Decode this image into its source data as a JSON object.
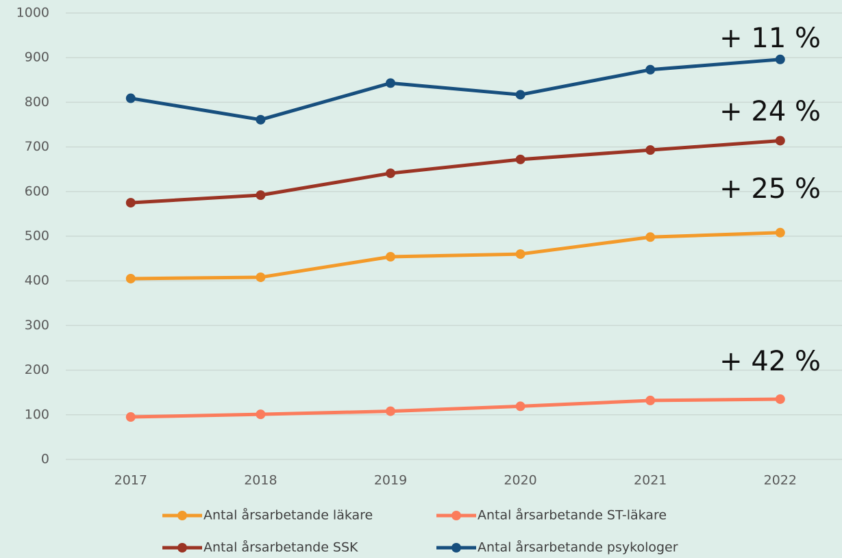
{
  "chart_data": {
    "type": "line",
    "categories": [
      "2017",
      "2018",
      "2019",
      "2020",
      "2021",
      "2022"
    ],
    "series": [
      {
        "name": "Antal årsarbetande läkare",
        "color": "#f39a2a",
        "values": [
          405,
          408,
          454,
          460,
          498,
          508
        ]
      },
      {
        "name": "Antal årsarbetande ST-läkare",
        "color": "#fb7c5c",
        "values": [
          95,
          101,
          108,
          119,
          132,
          135
        ]
      },
      {
        "name": "Antal årsarbetande SSK",
        "color": "#9b3424",
        "values": [
          575,
          592,
          641,
          672,
          693,
          714
        ]
      },
      {
        "name": "Antal årsarbetande psykologer",
        "color": "#174f7e",
        "values": [
          809,
          761,
          843,
          817,
          873,
          896
        ]
      }
    ],
    "annotations": [
      "+ 11 %",
      "+ 24 %",
      "+ 25 %",
      "+ 42 %"
    ],
    "ylim": [
      0,
      1000
    ],
    "yticks": [
      0,
      100,
      200,
      300,
      400,
      500,
      600,
      700,
      800,
      900,
      1000
    ],
    "grid": true
  }
}
